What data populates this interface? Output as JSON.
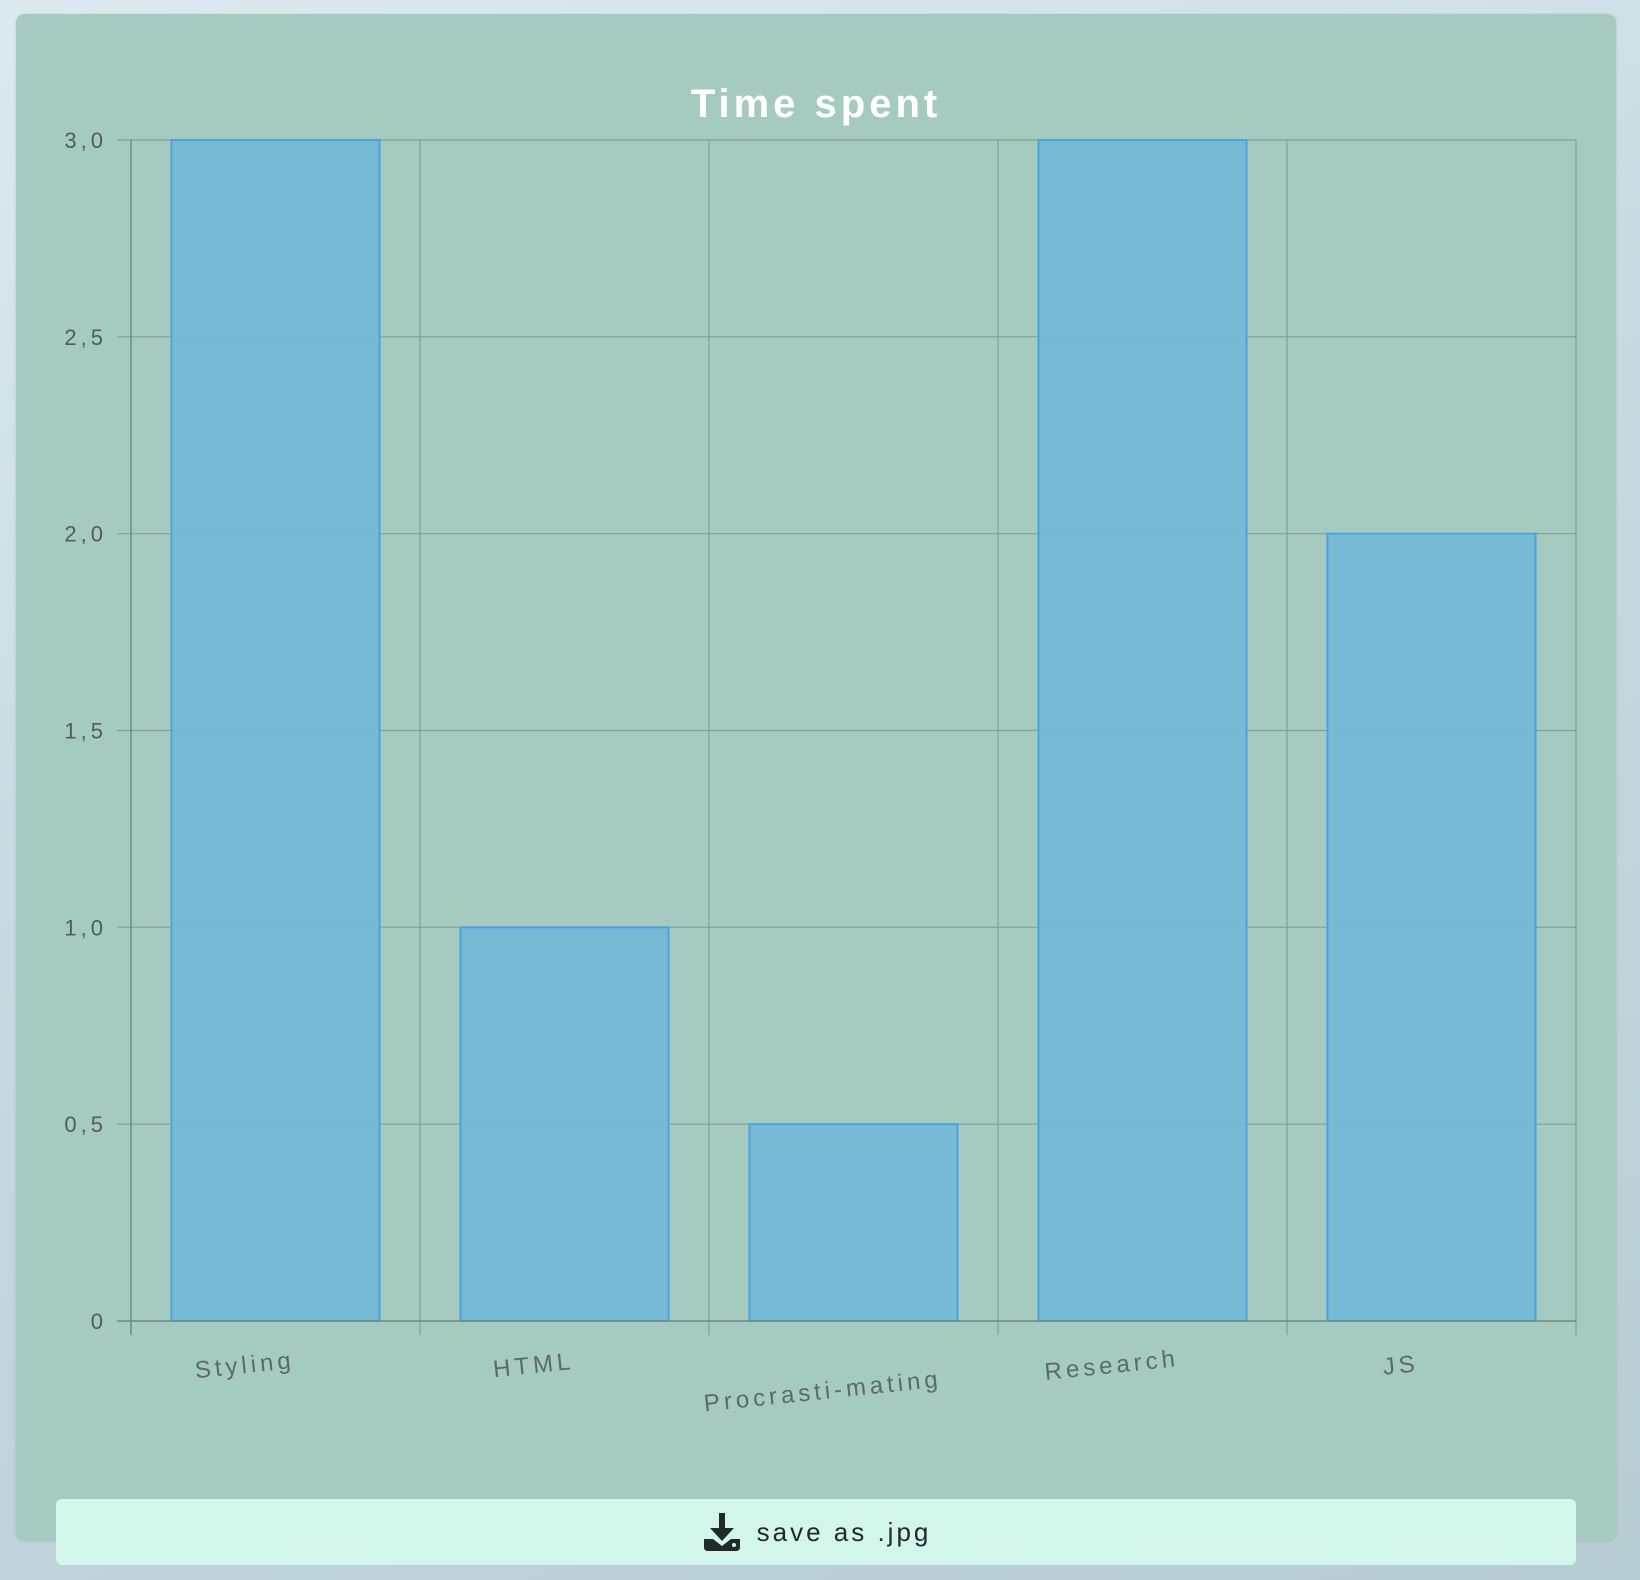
{
  "chart_data": {
    "type": "bar",
    "title": "Time spent",
    "categories": [
      "Styling",
      "HTML",
      "Procrasti-mating",
      "Research",
      "JS"
    ],
    "values": [
      3,
      1,
      0.5,
      3,
      2
    ],
    "ylim": [
      0,
      3
    ],
    "yticks": [
      "0",
      "0,5",
      "1,0",
      "1,5",
      "2,0",
      "2,5",
      "3,0"
    ],
    "grid": true,
    "legend": "none",
    "bar_color": "#74b8d6",
    "bar_border_color": "#4aa3dc"
  },
  "save_button": {
    "label": "save as .jpg",
    "icon": "download-icon"
  }
}
